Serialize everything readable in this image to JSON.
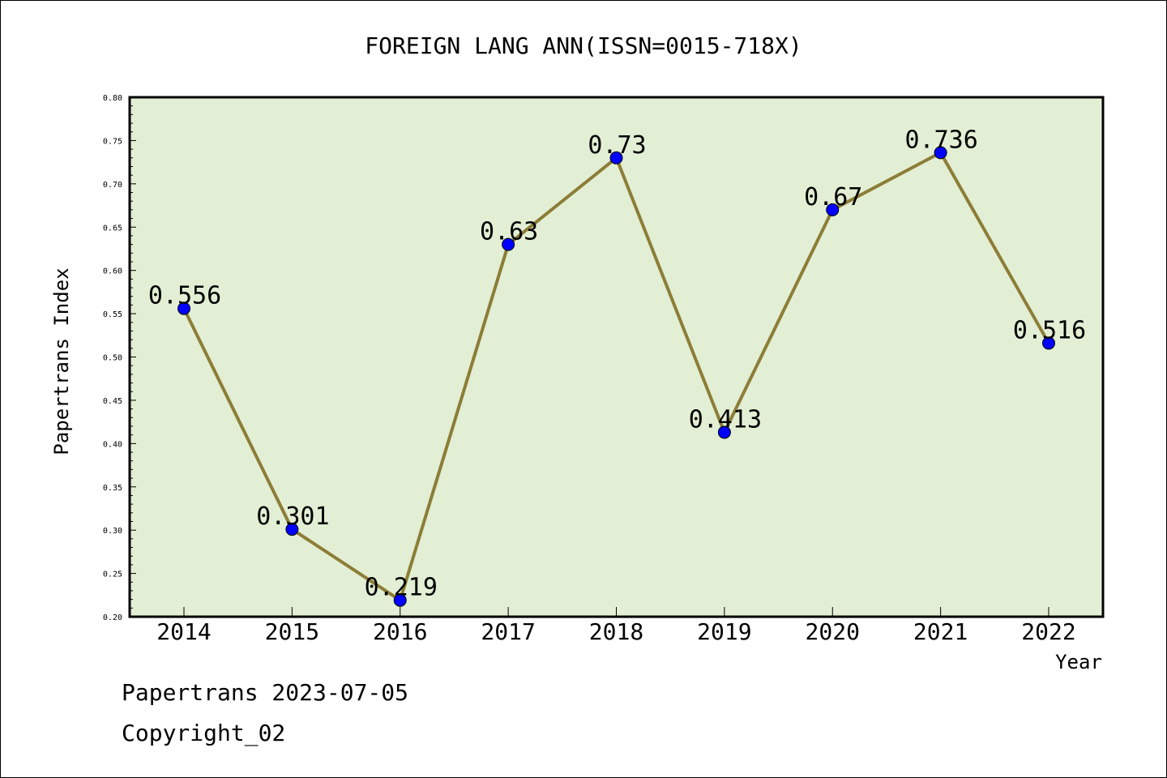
{
  "chart_data": {
    "type": "line",
    "title": "FOREIGN LANG ANN(ISSN=0015-718X)",
    "xlabel": "Year",
    "ylabel": "Papertrans Index",
    "categories": [
      "2014",
      "2015",
      "2016",
      "2017",
      "2018",
      "2019",
      "2020",
      "2021",
      "2022"
    ],
    "series": [
      {
        "values": [
          0.556,
          0.301,
          0.219,
          0.63,
          0.73,
          0.413,
          0.67,
          0.736,
          0.516
        ]
      }
    ],
    "data_labels": [
      "0.556",
      "0.301",
      "0.219",
      "0.63",
      "0.73",
      "0.413",
      "0.67",
      "0.736",
      "0.516"
    ],
    "ylim": [
      0.2,
      0.8
    ],
    "yticks": [
      "0.20",
      "0.25",
      "0.30",
      "0.35",
      "0.40",
      "0.45",
      "0.50",
      "0.55",
      "0.60",
      "0.65",
      "0.70",
      "0.75",
      "0.80"
    ],
    "grid": false,
    "colors": {
      "plot_background": "#e2efd4",
      "line": "#8c7d37",
      "marker": "#0000ff"
    }
  },
  "footer": {
    "source": "Papertrans 2023-07-05",
    "copyright": "Copyright_02"
  }
}
